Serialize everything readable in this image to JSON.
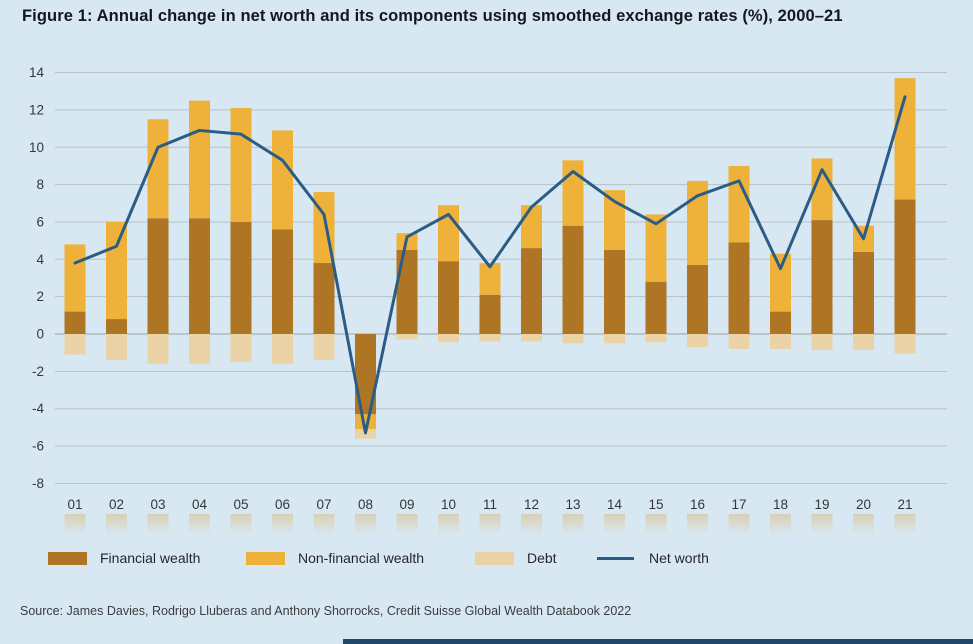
{
  "page": {
    "title": "Figure 1: Annual change in net worth and its components using smoothed exchange rates (%), 2000–21",
    "source": "Source: James Davies, Rodrigo Lluberas and Anthony Shorrocks, Credit Suisse Global Wealth Databook 2022",
    "background_color": "#d8e8f2"
  },
  "chart_data": {
    "type": "bar",
    "subtype": "stacked-bars-with-line",
    "title": "Figure 1: Annual change in net worth and its components using smoothed exchange rates (%), 2000–21",
    "xlabel": "",
    "ylabel": "",
    "ylim": [
      -8,
      14
    ],
    "yticks": [
      14,
      12,
      10,
      8,
      6,
      4,
      2,
      0,
      -2,
      -4,
      -6,
      -8
    ],
    "grid": true,
    "legend_position": "bottom",
    "categories": [
      "01",
      "02",
      "03",
      "04",
      "05",
      "06",
      "07",
      "08",
      "09",
      "10",
      "11",
      "12",
      "13",
      "14",
      "15",
      "16",
      "17",
      "18",
      "19",
      "20",
      "21"
    ],
    "series": [
      {
        "name": "Financial wealth",
        "type": "bar",
        "color": "#ad7524",
        "values": [
          1.2,
          0.8,
          6.2,
          6.2,
          6.0,
          5.6,
          3.8,
          -4.3,
          4.5,
          3.9,
          2.1,
          4.6,
          5.8,
          4.5,
          2.8,
          3.7,
          4.9,
          1.2,
          6.1,
          4.4,
          7.2
        ]
      },
      {
        "name": "Non-financial wealth",
        "type": "bar",
        "color": "#eeb23a",
        "values": [
          3.6,
          5.2,
          5.3,
          6.3,
          6.1,
          5.3,
          3.8,
          -0.8,
          0.9,
          3.0,
          1.7,
          2.3,
          3.5,
          3.2,
          3.6,
          4.5,
          4.1,
          3.1,
          3.3,
          1.4,
          6.5
        ]
      },
      {
        "name": "Debt",
        "type": "bar",
        "color": "#e9d3a7",
        "values": [
          -1.1,
          -1.4,
          -1.6,
          -1.6,
          -1.5,
          -1.6,
          -1.4,
          -0.5,
          -0.3,
          -0.45,
          -0.4,
          -0.4,
          -0.5,
          -0.5,
          -0.45,
          -0.7,
          -0.8,
          -0.8,
          -0.85,
          -0.85,
          -1.05
        ]
      },
      {
        "name": "Net worth",
        "type": "line",
        "color": "#2b5c86",
        "values": [
          3.8,
          4.7,
          10.0,
          10.9,
          10.7,
          9.3,
          6.4,
          -5.3,
          5.2,
          6.4,
          3.6,
          6.8,
          8.7,
          7.1,
          5.9,
          7.4,
          8.2,
          3.5,
          8.8,
          5.1,
          12.7
        ]
      }
    ],
    "colors": {
      "gridline": "#b5c2ca",
      "zero_line": "#97a2aa",
      "axis_text": "#35363c"
    }
  }
}
